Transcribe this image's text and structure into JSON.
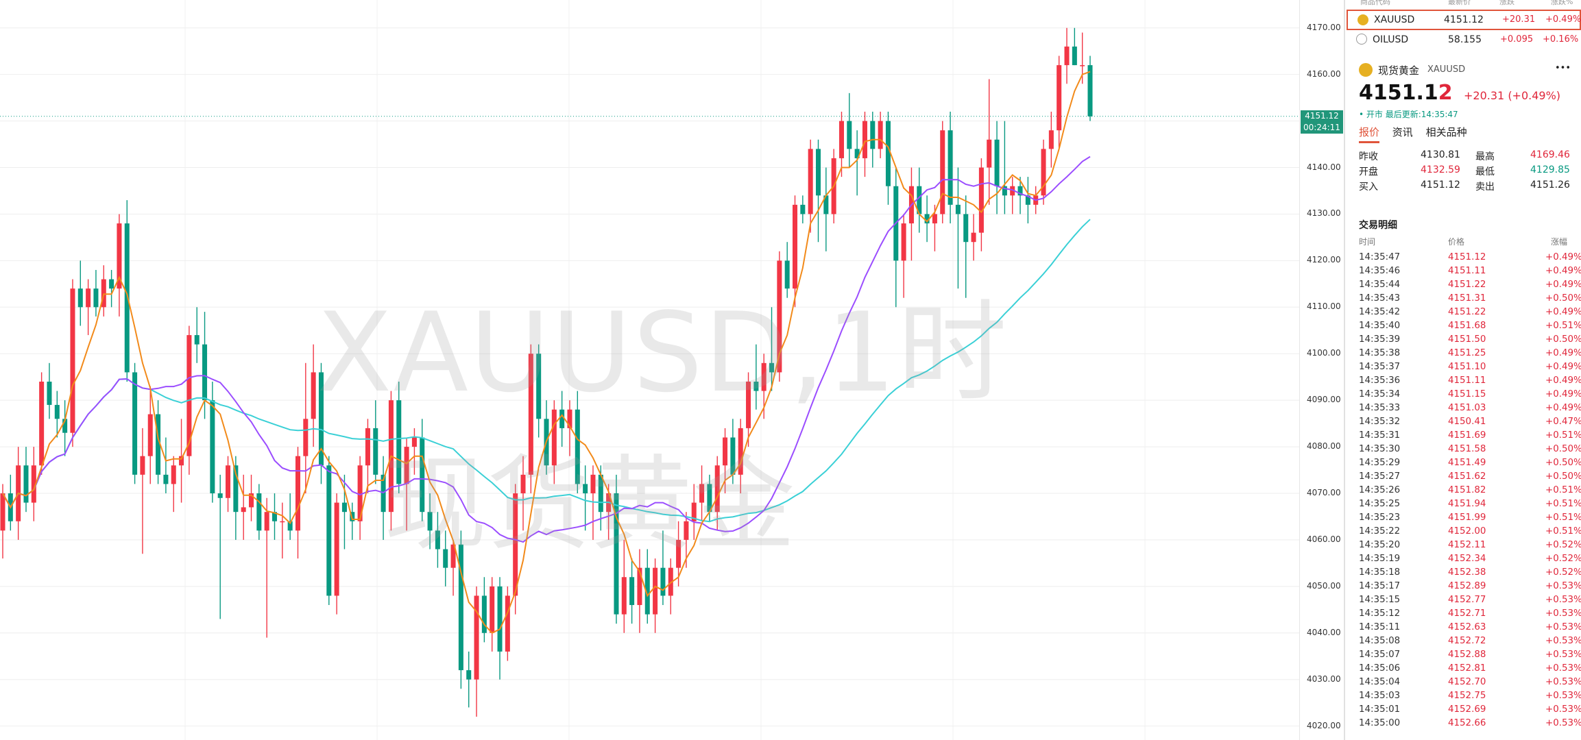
{
  "chart_data": {
    "type": "candlestick",
    "title": "XAUUSD,1时",
    "subtitle": "现货黄金",
    "ylim": [
      4017,
      4176
    ],
    "y_ticks": [
      4020,
      4030,
      4040,
      4050,
      4060,
      4070,
      4080,
      4090,
      4100,
      4110,
      4120,
      4130,
      4140,
      4150,
      4160,
      4170
    ],
    "y_tick_labels": [
      "4020.00",
      "4030.00",
      "4040.00",
      "4050.00",
      "4060.00",
      "4070.00",
      "4080.00",
      "4090.00",
      "4100.00",
      "4110.00",
      "4120.00",
      "4130.00",
      "4140.00",
      "4150.00",
      "4160.00",
      "4170.00"
    ],
    "current_price_label": "4151.12",
    "countdown_label": "00:24:11",
    "candles": [
      {
        "o": 4062,
        "h": 4072,
        "l": 4056,
        "c": 4070
      },
      {
        "o": 4070,
        "h": 4074,
        "l": 4062,
        "c": 4064
      },
      {
        "o": 4064,
        "h": 4080,
        "l": 4060,
        "c": 4076
      },
      {
        "o": 4076,
        "h": 4080,
        "l": 4066,
        "c": 4068
      },
      {
        "o": 4068,
        "h": 4080,
        "l": 4064,
        "c": 4076
      },
      {
        "o": 4076,
        "h": 4096,
        "l": 4074,
        "c": 4094
      },
      {
        "o": 4094,
        "h": 4098,
        "l": 4086,
        "c": 4089
      },
      {
        "o": 4089,
        "h": 4092,
        "l": 4082,
        "c": 4086
      },
      {
        "o": 4086,
        "h": 4090,
        "l": 4078,
        "c": 4083
      },
      {
        "o": 4083,
        "h": 4116,
        "l": 4080,
        "c": 4114
      },
      {
        "o": 4114,
        "h": 4120,
        "l": 4106,
        "c": 4110
      },
      {
        "o": 4110,
        "h": 4116,
        "l": 4104,
        "c": 4114
      },
      {
        "o": 4114,
        "h": 4118,
        "l": 4108,
        "c": 4110
      },
      {
        "o": 4110,
        "h": 4119,
        "l": 4108,
        "c": 4116
      },
      {
        "o": 4116,
        "h": 4118,
        "l": 4110,
        "c": 4114
      },
      {
        "o": 4114,
        "h": 4130,
        "l": 4108,
        "c": 4128
      },
      {
        "o": 4128,
        "h": 4133,
        "l": 4094,
        "c": 4096
      },
      {
        "o": 4096,
        "h": 4098,
        "l": 4072,
        "c": 4074
      },
      {
        "o": 4074,
        "h": 4084,
        "l": 4057,
        "c": 4078
      },
      {
        "o": 4078,
        "h": 4093,
        "l": 4072,
        "c": 4087
      },
      {
        "o": 4087,
        "h": 4090,
        "l": 4072,
        "c": 4074
      },
      {
        "o": 4074,
        "h": 4082,
        "l": 4070,
        "c": 4072
      },
      {
        "o": 4072,
        "h": 4078,
        "l": 4066,
        "c": 4076
      },
      {
        "o": 4076,
        "h": 4086,
        "l": 4068,
        "c": 4078
      },
      {
        "o": 4078,
        "h": 4106,
        "l": 4074,
        "c": 4104
      },
      {
        "o": 4104,
        "h": 4110,
        "l": 4098,
        "c": 4102
      },
      {
        "o": 4102,
        "h": 4109,
        "l": 4086,
        "c": 4090
      },
      {
        "o": 4090,
        "h": 4094,
        "l": 4068,
        "c": 4070
      },
      {
        "o": 4070,
        "h": 4074,
        "l": 4043,
        "c": 4069
      },
      {
        "o": 4069,
        "h": 4078,
        "l": 4066,
        "c": 4076
      },
      {
        "o": 4076,
        "h": 4078,
        "l": 4060,
        "c": 4066
      },
      {
        "o": 4066,
        "h": 4074,
        "l": 4060,
        "c": 4067
      },
      {
        "o": 4067,
        "h": 4074,
        "l": 4064,
        "c": 4070
      },
      {
        "o": 4070,
        "h": 4072,
        "l": 4060,
        "c": 4062
      },
      {
        "o": 4062,
        "h": 4069,
        "l": 4039,
        "c": 4066
      },
      {
        "o": 4066,
        "h": 4070,
        "l": 4060,
        "c": 4064
      },
      {
        "o": 4064,
        "h": 4068,
        "l": 4056,
        "c": 4064
      },
      {
        "o": 4064,
        "h": 4070,
        "l": 4060,
        "c": 4062
      },
      {
        "o": 4062,
        "h": 4080,
        "l": 4056,
        "c": 4078
      },
      {
        "o": 4078,
        "h": 4098,
        "l": 4070,
        "c": 4086
      },
      {
        "o": 4086,
        "h": 4102,
        "l": 4080,
        "c": 4096
      },
      {
        "o": 4096,
        "h": 4098,
        "l": 4072,
        "c": 4076
      },
      {
        "o": 4076,
        "h": 4078,
        "l": 4046,
        "c": 4048
      },
      {
        "o": 4048,
        "h": 4070,
        "l": 4044,
        "c": 4068
      },
      {
        "o": 4068,
        "h": 4074,
        "l": 4058,
        "c": 4066
      },
      {
        "o": 4066,
        "h": 4068,
        "l": 4060,
        "c": 4064
      },
      {
        "o": 4064,
        "h": 4078,
        "l": 4060,
        "c": 4076
      },
      {
        "o": 4076,
        "h": 4086,
        "l": 4070,
        "c": 4084
      },
      {
        "o": 4084,
        "h": 4090,
        "l": 4072,
        "c": 4074
      },
      {
        "o": 4074,
        "h": 4078,
        "l": 4060,
        "c": 4066
      },
      {
        "o": 4066,
        "h": 4092,
        "l": 4062,
        "c": 4090
      },
      {
        "o": 4090,
        "h": 4094,
        "l": 4070,
        "c": 4072
      },
      {
        "o": 4072,
        "h": 4082,
        "l": 4062,
        "c": 4080
      },
      {
        "o": 4080,
        "h": 4084,
        "l": 4074,
        "c": 4082
      },
      {
        "o": 4082,
        "h": 4086,
        "l": 4064,
        "c": 4066
      },
      {
        "o": 4066,
        "h": 4070,
        "l": 4058,
        "c": 4062
      },
      {
        "o": 4062,
        "h": 4066,
        "l": 4054,
        "c": 4058
      },
      {
        "o": 4058,
        "h": 4062,
        "l": 4050,
        "c": 4054
      },
      {
        "o": 4054,
        "h": 4060,
        "l": 4048,
        "c": 4059
      },
      {
        "o": 4059,
        "h": 4062,
        "l": 4028,
        "c": 4032
      },
      {
        "o": 4032,
        "h": 4036,
        "l": 4024,
        "c": 4030
      },
      {
        "o": 4030,
        "h": 4050,
        "l": 4022,
        "c": 4048
      },
      {
        "o": 4048,
        "h": 4052,
        "l": 4038,
        "c": 4040
      },
      {
        "o": 4040,
        "h": 4052,
        "l": 4036,
        "c": 4050
      },
      {
        "o": 4050,
        "h": 4052,
        "l": 4030,
        "c": 4036
      },
      {
        "o": 4036,
        "h": 4050,
        "l": 4034,
        "c": 4048
      },
      {
        "o": 4048,
        "h": 4072,
        "l": 4044,
        "c": 4070
      },
      {
        "o": 4070,
        "h": 4078,
        "l": 4062,
        "c": 4074
      },
      {
        "o": 4074,
        "h": 4102,
        "l": 4070,
        "c": 4100
      },
      {
        "o": 4100,
        "h": 4102,
        "l": 4082,
        "c": 4086
      },
      {
        "o": 4086,
        "h": 4090,
        "l": 4074,
        "c": 4076
      },
      {
        "o": 4076,
        "h": 4090,
        "l": 4072,
        "c": 4088
      },
      {
        "o": 4088,
        "h": 4092,
        "l": 4080,
        "c": 4084
      },
      {
        "o": 4084,
        "h": 4090,
        "l": 4078,
        "c": 4088
      },
      {
        "o": 4088,
        "h": 4092,
        "l": 4070,
        "c": 4072
      },
      {
        "o": 4072,
        "h": 4076,
        "l": 4062,
        "c": 4070
      },
      {
        "o": 4070,
        "h": 4076,
        "l": 4060,
        "c": 4074
      },
      {
        "o": 4074,
        "h": 4076,
        "l": 4062,
        "c": 4066
      },
      {
        "o": 4066,
        "h": 4072,
        "l": 4060,
        "c": 4070
      },
      {
        "o": 4070,
        "h": 4074,
        "l": 4042,
        "c": 4044
      },
      {
        "o": 4044,
        "h": 4060,
        "l": 4040,
        "c": 4052
      },
      {
        "o": 4052,
        "h": 4056,
        "l": 4042,
        "c": 4046
      },
      {
        "o": 4046,
        "h": 4058,
        "l": 4040,
        "c": 4054
      },
      {
        "o": 4054,
        "h": 4058,
        "l": 4042,
        "c": 4044
      },
      {
        "o": 4044,
        "h": 4056,
        "l": 4040,
        "c": 4054
      },
      {
        "o": 4054,
        "h": 4062,
        "l": 4046,
        "c": 4048
      },
      {
        "o": 4048,
        "h": 4056,
        "l": 4044,
        "c": 4054
      },
      {
        "o": 4054,
        "h": 4064,
        "l": 4050,
        "c": 4060
      },
      {
        "o": 4060,
        "h": 4066,
        "l": 4054,
        "c": 4064
      },
      {
        "o": 4064,
        "h": 4072,
        "l": 4060,
        "c": 4068
      },
      {
        "o": 4068,
        "h": 4076,
        "l": 4064,
        "c": 4072
      },
      {
        "o": 4072,
        "h": 4074,
        "l": 4064,
        "c": 4066
      },
      {
        "o": 4066,
        "h": 4078,
        "l": 4062,
        "c": 4076
      },
      {
        "o": 4076,
        "h": 4084,
        "l": 4070,
        "c": 4082
      },
      {
        "o": 4082,
        "h": 4086,
        "l": 4072,
        "c": 4074
      },
      {
        "o": 4074,
        "h": 4086,
        "l": 4070,
        "c": 4084
      },
      {
        "o": 4084,
        "h": 4096,
        "l": 4080,
        "c": 4094
      },
      {
        "o": 4094,
        "h": 4102,
        "l": 4088,
        "c": 4092
      },
      {
        "o": 4092,
        "h": 4100,
        "l": 4086,
        "c": 4098
      },
      {
        "o": 4098,
        "h": 4110,
        "l": 4092,
        "c": 4096
      },
      {
        "o": 4096,
        "h": 4122,
        "l": 4094,
        "c": 4120
      },
      {
        "o": 4120,
        "h": 4124,
        "l": 4112,
        "c": 4114
      },
      {
        "o": 4114,
        "h": 4134,
        "l": 4110,
        "c": 4132
      },
      {
        "o": 4132,
        "h": 4134,
        "l": 4128,
        "c": 4130
      },
      {
        "o": 4130,
        "h": 4146,
        "l": 4126,
        "c": 4144
      },
      {
        "o": 4144,
        "h": 4146,
        "l": 4124,
        "c": 4134
      },
      {
        "o": 4134,
        "h": 4140,
        "l": 4122,
        "c": 4130
      },
      {
        "o": 4130,
        "h": 4144,
        "l": 4128,
        "c": 4142
      },
      {
        "o": 4142,
        "h": 4152,
        "l": 4138,
        "c": 4150
      },
      {
        "o": 4150,
        "h": 4156,
        "l": 4140,
        "c": 4144
      },
      {
        "o": 4144,
        "h": 4148,
        "l": 4134,
        "c": 4142
      },
      {
        "o": 4142,
        "h": 4152,
        "l": 4138,
        "c": 4150
      },
      {
        "o": 4150,
        "h": 4152,
        "l": 4140,
        "c": 4144
      },
      {
        "o": 4144,
        "h": 4152,
        "l": 4142,
        "c": 4150
      },
      {
        "o": 4150,
        "h": 4152,
        "l": 4132,
        "c": 4136
      },
      {
        "o": 4136,
        "h": 4140,
        "l": 4110,
        "c": 4120
      },
      {
        "o": 4120,
        "h": 4130,
        "l": 4112,
        "c": 4128
      },
      {
        "o": 4128,
        "h": 4140,
        "l": 4120,
        "c": 4136
      },
      {
        "o": 4136,
        "h": 4140,
        "l": 4126,
        "c": 4130
      },
      {
        "o": 4130,
        "h": 4134,
        "l": 4124,
        "c": 4128
      },
      {
        "o": 4128,
        "h": 4132,
        "l": 4122,
        "c": 4130
      },
      {
        "o": 4130,
        "h": 4150,
        "l": 4128,
        "c": 4148
      },
      {
        "o": 4148,
        "h": 4152,
        "l": 4128,
        "c": 4132
      },
      {
        "o": 4132,
        "h": 4140,
        "l": 4114,
        "c": 4130
      },
      {
        "o": 4130,
        "h": 4134,
        "l": 4112,
        "c": 4124
      },
      {
        "o": 4124,
        "h": 4130,
        "l": 4120,
        "c": 4126
      },
      {
        "o": 4126,
        "h": 4142,
        "l": 4122,
        "c": 4140
      },
      {
        "o": 4140,
        "h": 4159,
        "l": 4132,
        "c": 4146
      },
      {
        "o": 4146,
        "h": 4150,
        "l": 4130,
        "c": 4136
      },
      {
        "o": 4136,
        "h": 4150,
        "l": 4130,
        "c": 4134
      },
      {
        "o": 4134,
        "h": 4138,
        "l": 4130,
        "c": 4136
      },
      {
        "o": 4136,
        "h": 4138,
        "l": 4130,
        "c": 4134
      },
      {
        "o": 4134,
        "h": 4138,
        "l": 4128,
        "c": 4132
      },
      {
        "o": 4132,
        "h": 4136,
        "l": 4130,
        "c": 4134
      },
      {
        "o": 4134,
        "h": 4146,
        "l": 4132,
        "c": 4144
      },
      {
        "o": 4144,
        "h": 4152,
        "l": 4140,
        "c": 4148
      },
      {
        "o": 4148,
        "h": 4164,
        "l": 4144,
        "c": 4162
      },
      {
        "o": 4162,
        "h": 4170,
        "l": 4158,
        "c": 4166
      },
      {
        "o": 4166,
        "h": 4170,
        "l": 4162,
        "c": 4162
      },
      {
        "o": 4162,
        "h": 4169,
        "l": 4158,
        "c": 4162
      },
      {
        "o": 4162,
        "h": 4164,
        "l": 4150,
        "c": 4151
      }
    ],
    "ma_fast_color": "#f28a1a",
    "ma_mid_color": "#9b4dff",
    "ma_slow_color": "#3ad0d6",
    "up_color": "#f23645",
    "down_color": "#089981"
  },
  "watchlist": {
    "header": [
      "商品代码",
      "最新价",
      "涨跌",
      "涨跌%"
    ],
    "rows": [
      {
        "symbol": "XAUUSD",
        "price": "4151.12",
        "change": "+20.31",
        "pct": "+0.49%"
      },
      {
        "symbol": "OILUSD",
        "price": "58.155",
        "change": "+0.095",
        "pct": "+0.16%"
      }
    ]
  },
  "detail": {
    "name": "现货黄金",
    "symbol": "XAUUSD",
    "menu": "•••",
    "price_main": "4151.1",
    "price_last": "2",
    "change": "+20.31",
    "change_pct": "(+0.49%)",
    "status": "• 开市 最后更新:14:35:47",
    "tabs": [
      "报价",
      "资讯",
      "相关品种"
    ],
    "stats": [
      {
        "l1": "昨收",
        "v1": "4130.81",
        "l2": "最高",
        "v2": "4169.46"
      },
      {
        "l1": "开盘",
        "v1": "4132.59",
        "l2": "最低",
        "v2": "4129.85"
      },
      {
        "l1": "买入",
        "v1": "4151.12",
        "l2": "卖出",
        "v2": "4151.26"
      }
    ],
    "trades_title": "交易明细",
    "trades_header": [
      "时间",
      "价格",
      "涨幅"
    ],
    "trades": [
      [
        "14:35:47",
        "4151.12",
        "+0.49%"
      ],
      [
        "14:35:46",
        "4151.11",
        "+0.49%"
      ],
      [
        "14:35:44",
        "4151.22",
        "+0.49%"
      ],
      [
        "14:35:43",
        "4151.31",
        "+0.50%"
      ],
      [
        "14:35:42",
        "4151.22",
        "+0.49%"
      ],
      [
        "14:35:40",
        "4151.68",
        "+0.51%"
      ],
      [
        "14:35:39",
        "4151.50",
        "+0.50%"
      ],
      [
        "14:35:38",
        "4151.25",
        "+0.49%"
      ],
      [
        "14:35:37",
        "4151.10",
        "+0.49%"
      ],
      [
        "14:35:36",
        "4151.11",
        "+0.49%"
      ],
      [
        "14:35:34",
        "4151.15",
        "+0.49%"
      ],
      [
        "14:35:33",
        "4151.03",
        "+0.49%"
      ],
      [
        "14:35:32",
        "4150.41",
        "+0.47%"
      ],
      [
        "14:35:31",
        "4151.69",
        "+0.51%"
      ],
      [
        "14:35:30",
        "4151.58",
        "+0.50%"
      ],
      [
        "14:35:29",
        "4151.49",
        "+0.50%"
      ],
      [
        "14:35:27",
        "4151.62",
        "+0.50%"
      ],
      [
        "14:35:26",
        "4151.82",
        "+0.51%"
      ],
      [
        "14:35:25",
        "4151.94",
        "+0.51%"
      ],
      [
        "14:35:23",
        "4151.99",
        "+0.51%"
      ],
      [
        "14:35:22",
        "4152.00",
        "+0.51%"
      ],
      [
        "14:35:20",
        "4152.11",
        "+0.52%"
      ],
      [
        "14:35:19",
        "4152.34",
        "+0.52%"
      ],
      [
        "14:35:18",
        "4152.38",
        "+0.52%"
      ],
      [
        "14:35:17",
        "4152.89",
        "+0.53%"
      ],
      [
        "14:35:15",
        "4152.77",
        "+0.53%"
      ],
      [
        "14:35:12",
        "4152.71",
        "+0.53%"
      ],
      [
        "14:35:11",
        "4152.63",
        "+0.53%"
      ],
      [
        "14:35:08",
        "4152.72",
        "+0.53%"
      ],
      [
        "14:35:07",
        "4152.88",
        "+0.53%"
      ],
      [
        "14:35:06",
        "4152.81",
        "+0.53%"
      ],
      [
        "14:35:04",
        "4152.70",
        "+0.53%"
      ],
      [
        "14:35:03",
        "4152.75",
        "+0.53%"
      ],
      [
        "14:35:01",
        "4152.69",
        "+0.53%"
      ],
      [
        "14:35:00",
        "4152.66",
        "+0.53%"
      ]
    ]
  }
}
